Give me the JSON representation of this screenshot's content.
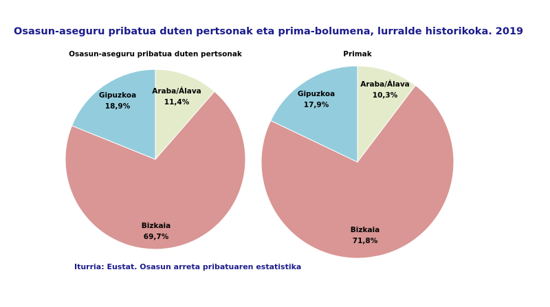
{
  "title": "Osasun-aseguru pribatua duten pertsonak eta prima-bolumena, lurralde historikoka. 2019",
  "source": "Iturria: Eustat. Osasun arreta pribatuaren estatistika",
  "colors": {
    "Araba/Álava": "#e3ebcb",
    "Bizkaia": "#d99694",
    "Gipuzkoa": "#93cddd",
    "title_text": "#1a1a8c"
  },
  "chart_data": [
    {
      "type": "pie",
      "title": "Osasun-aseguru pribatua duten pertsonak",
      "categories": [
        "Araba/Álava",
        "Bizkaia",
        "Gipuzkoa"
      ],
      "values": [
        11.4,
        69.7,
        18.9
      ],
      "value_labels": [
        "11,4%",
        "69,7%",
        "18,9%"
      ]
    },
    {
      "type": "pie",
      "title": "Primak",
      "categories": [
        "Araba/Álava",
        "Bizkaia",
        "Gipuzkoa"
      ],
      "values": [
        10.3,
        71.8,
        17.9
      ],
      "value_labels": [
        "10,3%",
        "71,8%",
        "17,9%"
      ]
    }
  ]
}
